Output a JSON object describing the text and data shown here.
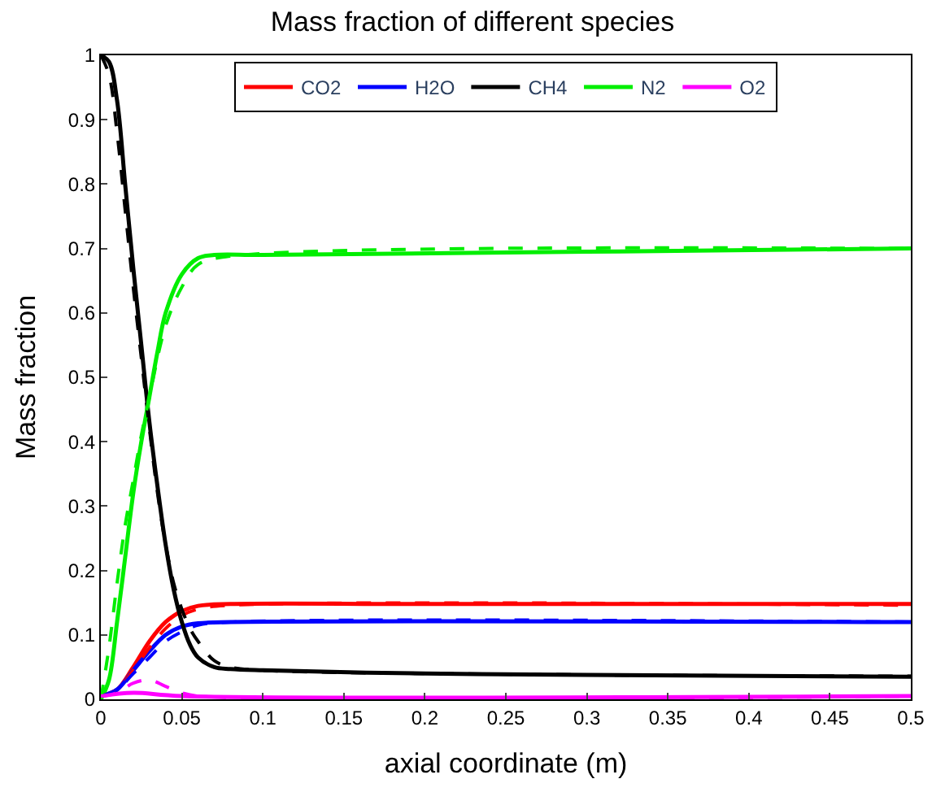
{
  "chart_data": {
    "type": "line",
    "title": "Mass fraction of different species",
    "xlabel": "axial coordinate (m)",
    "ylabel": "Mass fraction",
    "xlim": [
      0,
      0.5
    ],
    "xticks": [
      0,
      0.05,
      0.1,
      0.15,
      0.2,
      0.25,
      0.3,
      0.35,
      0.4,
      0.45,
      0.5
    ],
    "ylim": [
      0,
      1
    ],
    "yticks": [
      0,
      0.1,
      0.2,
      0.3,
      0.4,
      0.5,
      0.6,
      0.7,
      0.8,
      0.9,
      1
    ],
    "legend": "top",
    "series": [
      {
        "name": "CO2",
        "color": "#ff0000",
        "line_style": "solid",
        "x": [
          0,
          0.01,
          0.02,
          0.03,
          0.04,
          0.05,
          0.06,
          0.08,
          0.2,
          0.5
        ],
        "values": [
          0.005,
          0.015,
          0.05,
          0.09,
          0.12,
          0.137,
          0.145,
          0.148,
          0.148,
          0.148
        ]
      },
      {
        "name": "H2O",
        "color": "#0000ff",
        "line_style": "solid",
        "x": [
          0,
          0.01,
          0.02,
          0.03,
          0.04,
          0.05,
          0.06,
          0.08,
          0.5
        ],
        "values": [
          0.005,
          0.015,
          0.045,
          0.075,
          0.1,
          0.113,
          0.118,
          0.12,
          0.12
        ]
      },
      {
        "name": "CH4",
        "color": "#000000",
        "line_style": "solid",
        "x": [
          0,
          0.005,
          0.01,
          0.015,
          0.02,
          0.025,
          0.03,
          0.035,
          0.04,
          0.045,
          0.05,
          0.055,
          0.06,
          0.07,
          0.08,
          0.1,
          0.2,
          0.3,
          0.5
        ],
        "values": [
          1,
          0.99,
          0.93,
          0.8,
          0.67,
          0.55,
          0.43,
          0.33,
          0.24,
          0.17,
          0.12,
          0.085,
          0.065,
          0.05,
          0.047,
          0.045,
          0.04,
          0.038,
          0.035
        ]
      },
      {
        "name": "N2",
        "color": "#00ee00",
        "line_style": "solid",
        "x": [
          0,
          0.005,
          0.01,
          0.015,
          0.02,
          0.025,
          0.03,
          0.035,
          0.04,
          0.05,
          0.06,
          0.07,
          0.1,
          0.3,
          0.5
        ],
        "values": [
          0,
          0.03,
          0.12,
          0.22,
          0.32,
          0.4,
          0.47,
          0.54,
          0.6,
          0.66,
          0.685,
          0.69,
          0.69,
          0.695,
          0.7
        ]
      },
      {
        "name": "O2",
        "color": "#ff00ff",
        "line_style": "solid",
        "x": [
          0,
          0.02,
          0.05,
          0.5
        ],
        "values": [
          0.005,
          0.01,
          0.005,
          0.005
        ]
      },
      {
        "color": "#ff0000",
        "line_style": "dashed",
        "x": [
          0,
          0.01,
          0.02,
          0.03,
          0.04,
          0.05,
          0.06,
          0.08,
          0.5
        ],
        "values": [
          0.005,
          0.015,
          0.045,
          0.08,
          0.11,
          0.13,
          0.14,
          0.146,
          0.146
        ]
      },
      {
        "color": "#0000ff",
        "line_style": "dashed",
        "x": [
          0,
          0.01,
          0.02,
          0.03,
          0.04,
          0.05,
          0.06,
          0.08,
          0.5
        ],
        "values": [
          0.005,
          0.015,
          0.04,
          0.065,
          0.09,
          0.105,
          0.115,
          0.12,
          0.12
        ]
      },
      {
        "color": "#000000",
        "line_style": "dashed",
        "x": [
          0,
          0.005,
          0.01,
          0.015,
          0.02,
          0.025,
          0.03,
          0.035,
          0.04,
          0.045,
          0.05,
          0.055,
          0.06,
          0.07,
          0.08,
          0.1,
          0.3,
          0.5
        ],
        "values": [
          1,
          0.97,
          0.88,
          0.76,
          0.64,
          0.53,
          0.42,
          0.32,
          0.24,
          0.18,
          0.14,
          0.11,
          0.09,
          0.06,
          0.05,
          0.045,
          0.038,
          0.036
        ]
      },
      {
        "color": "#00ee00",
        "line_style": "dashed",
        "x": [
          0,
          0.005,
          0.01,
          0.015,
          0.02,
          0.025,
          0.03,
          0.04,
          0.05,
          0.06,
          0.08,
          0.5
        ],
        "values": [
          0,
          0.08,
          0.18,
          0.27,
          0.34,
          0.41,
          0.47,
          0.58,
          0.64,
          0.675,
          0.688,
          0.7
        ]
      },
      {
        "color": "#ff00ff",
        "line_style": "dashed",
        "x": [
          0,
          0.01,
          0.02,
          0.03,
          0.04,
          0.05,
          0.06,
          0.5
        ],
        "values": [
          0.005,
          0.01,
          0.025,
          0.03,
          0.02,
          0.01,
          0.005,
          0.005
        ]
      }
    ]
  }
}
